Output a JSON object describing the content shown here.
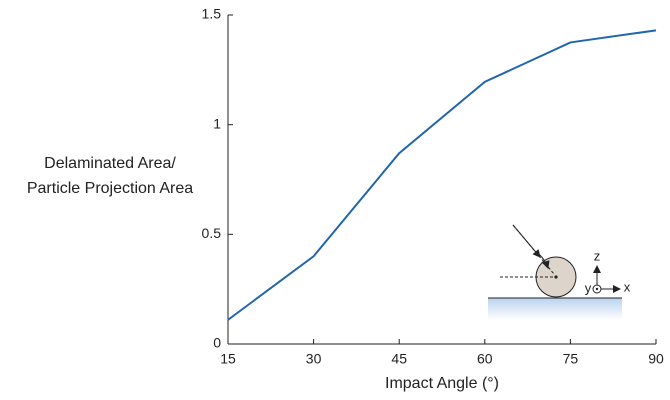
{
  "chart_data": {
    "type": "line",
    "xlabel": "Impact Angle (°)",
    "ylabel": [
      "Delaminated Area/",
      "Particle Projection Area"
    ],
    "x": [
      15,
      30,
      45,
      60,
      75,
      90
    ],
    "series": [
      {
        "color": "#2166ac",
        "values": [
          0.11,
          0.4,
          0.87,
          1.195,
          1.375,
          1.43
        ]
      }
    ],
    "xlim": [
      15,
      90
    ],
    "xticks": [
      15,
      30,
      45,
      60,
      75,
      90
    ],
    "ylim": [
      0,
      1.5
    ],
    "yticks": [
      0,
      0.5,
      1,
      1.5
    ],
    "inset": {
      "axis_labels": [
        "z",
        "y",
        "x"
      ]
    }
  }
}
